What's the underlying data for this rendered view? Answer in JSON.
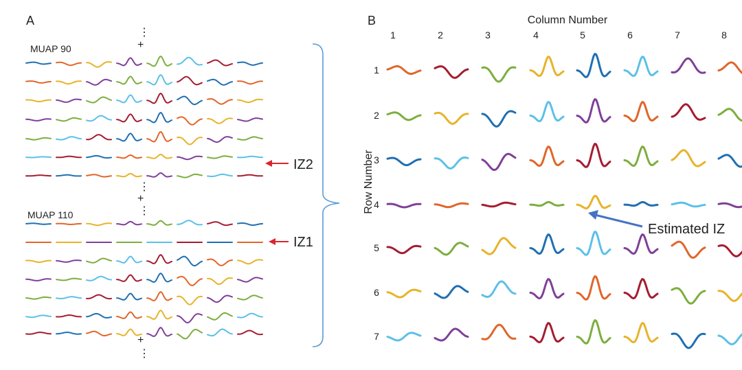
{
  "panel_a": {
    "label": "A",
    "muap_top_label": "MUAP 90",
    "muap_bottom_label": "MUAP 110",
    "iz2_label": "IZ2",
    "iz1_label": "IZ1",
    "plus_symbol": "+",
    "ellipsis_symbol": "⋮",
    "grid": {
      "rows": 7,
      "cols": 8
    },
    "arrow_color": "#d9262e",
    "bracket_color": "#5b9bd5"
  },
  "panel_b": {
    "label": "B",
    "column_axis_title": "Column Number",
    "row_axis_title": "Row Number",
    "columns": [
      "1",
      "2",
      "3",
      "4",
      "5",
      "6",
      "7",
      "8"
    ],
    "rows": [
      "1",
      "2",
      "3",
      "4",
      "5",
      "6",
      "7"
    ],
    "estimated_iz_label": "Estimated IZ",
    "arrow_color": "#4472c4"
  },
  "palette": [
    "#1f6fb2",
    "#e0662a",
    "#e8b32a",
    "#7f3f98",
    "#7cae3e",
    "#5bc0e8",
    "#a51c30"
  ]
}
